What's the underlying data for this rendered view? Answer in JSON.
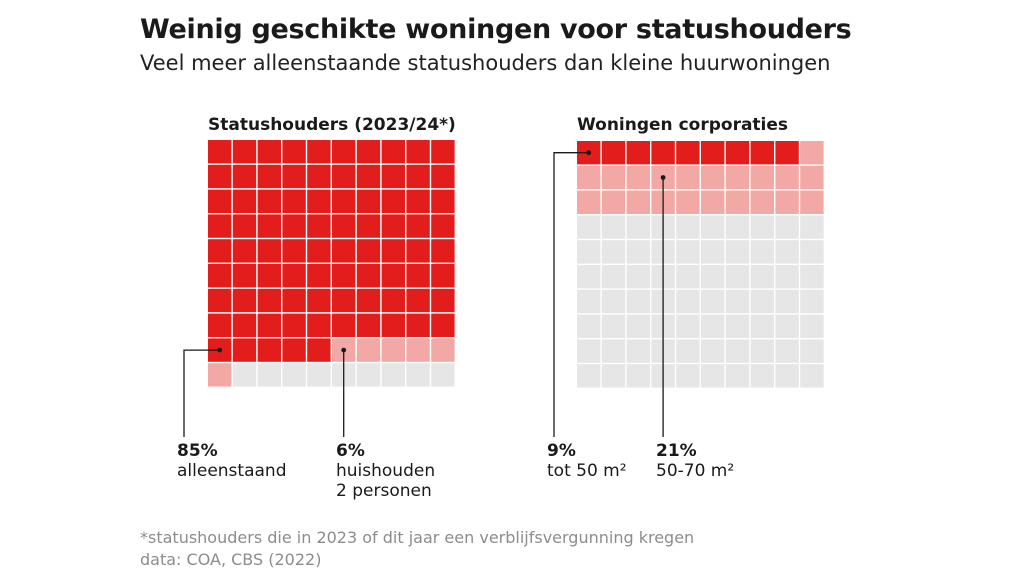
{
  "header": {
    "title": "Weinig geschikte woningen voor statushouders",
    "subtitle": "Veel meer alleenstaande statushouders dan kleine huurwoningen"
  },
  "colors": {
    "dark": "#e31c1c",
    "light": "#f2a8a4",
    "empty": "#e6e6e6",
    "leader": "#1a1a1a"
  },
  "chart_data": [
    {
      "type": "waffle",
      "title": "Statushouders (2023/24*)",
      "grid": [
        10,
        10
      ],
      "series": [
        {
          "name": "alleenstaand",
          "value": 85,
          "label": "85%",
          "color": "dark"
        },
        {
          "name": "huishouden 2 personen",
          "value": 6,
          "label": "6%",
          "color": "light"
        }
      ],
      "annotations": [
        {
          "pct": "85%",
          "label": "alleenstaand"
        },
        {
          "pct": "6%",
          "label": "huishouden\n2 personen"
        }
      ]
    },
    {
      "type": "waffle",
      "title": "Woningen corporaties",
      "grid": [
        10,
        10
      ],
      "series": [
        {
          "name": "tot 50 m²",
          "value": 9,
          "label": "9%",
          "color": "dark"
        },
        {
          "name": "50-70 m²",
          "value": 21,
          "label": "21%",
          "color": "light"
        }
      ],
      "annotations": [
        {
          "pct": "9%",
          "label": "tot 50 m²"
        },
        {
          "pct": "21%",
          "label": "50-70 m²"
        }
      ]
    }
  ],
  "footnote": {
    "line1": "*statushouders die in 2023 of dit jaar een verblijfsvergunning kregen",
    "line2": "data: COA, CBS (2022)"
  }
}
